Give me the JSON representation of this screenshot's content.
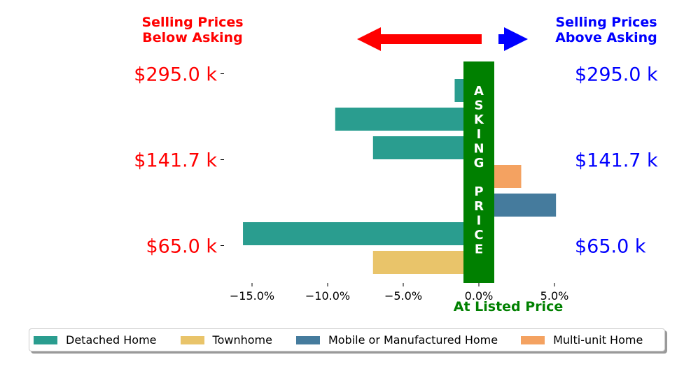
{
  "chart_data": {
    "type": "bar",
    "orientation": "horizontal",
    "x_ticks": [
      "−15.0%",
      "−10.0%",
      "−5.0%",
      "0.0%",
      "5.0%"
    ],
    "xlim": [
      -17.5,
      6.0
    ],
    "y_ticks_left": [
      "$295.0 k",
      "$141.7 k",
      "$65.0 k"
    ],
    "y_ticks_right": [
      "$295.0 k",
      "$141.7 k",
      "$65.0 k"
    ],
    "bars": [
      {
        "price": "$295.0 k",
        "value": -1.6,
        "category": "Detached Home"
      },
      {
        "price": "",
        "value": -9.5,
        "category": "Detached Home"
      },
      {
        "price": "",
        "value": -7.0,
        "category": "Detached Home"
      },
      {
        "price": "$141.7 k",
        "value": 2.8,
        "category": "Multi-unit Home"
      },
      {
        "price": "",
        "value": 5.1,
        "category": "Mobile or Manufactured Home"
      },
      {
        "price": "",
        "value": -15.6,
        "category": "Detached Home"
      },
      {
        "price": "$65.0 k",
        "value": -7.0,
        "category": "Townhome"
      }
    ],
    "annotations": {
      "below_label": "Selling Prices\nBelow Asking",
      "above_label": "Selling Prices\nAbove Asking",
      "asking_price_letters": [
        "A",
        "S",
        "K",
        "I",
        "N",
        "G",
        "",
        "P",
        "R",
        "I",
        "C",
        "E"
      ],
      "at_listed_label": "At Listed Price"
    },
    "legend": [
      {
        "name": "Detached Home",
        "color": "#2a9d8f"
      },
      {
        "name": "Townhome",
        "color": "#e9c46a"
      },
      {
        "name": "Mobile or Manufactured Home",
        "color": "#457b9d"
      },
      {
        "name": "Multi-unit Home",
        "color": "#f4a261"
      }
    ],
    "legend_position": "bottom",
    "grid": false
  },
  "colors": {
    "below": "#ff0000",
    "above": "#0000ff",
    "asking_bar": "#008000",
    "at_listed": "#008000"
  }
}
